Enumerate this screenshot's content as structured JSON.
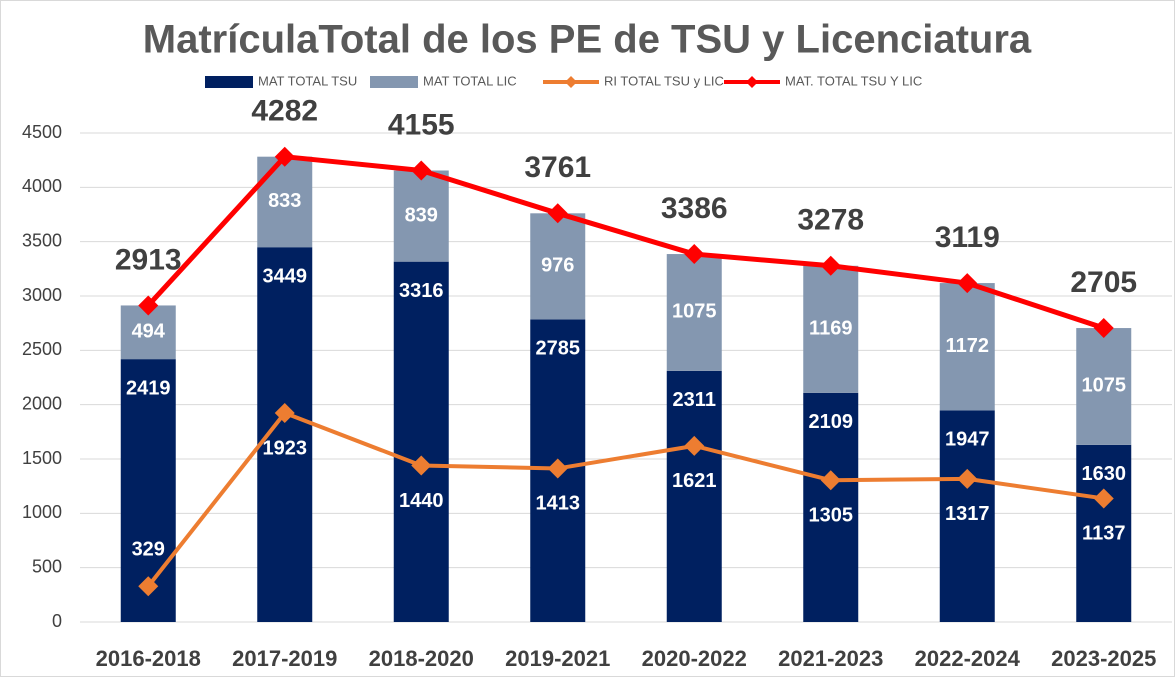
{
  "chart_data": {
    "type": "bar",
    "title": "MatrículaTotal de los PE de TSU y Licenciatura",
    "categories": [
      "2016-2018",
      "2017-2019",
      "2018-2020",
      "2019-2021",
      "2020-2022",
      "2021-2023",
      "2022-2024",
      "2023-2025"
    ],
    "series": [
      {
        "name": "MAT TOTAL TSU",
        "type": "bar",
        "color": "#002060",
        "values": [
          2419,
          3449,
          3316,
          2785,
          2311,
          2109,
          1947,
          1630
        ]
      },
      {
        "name": "MAT TOTAL LIC",
        "type": "bar",
        "color": "#8497b0",
        "values": [
          494,
          833,
          839,
          976,
          1075,
          1169,
          1172,
          1075
        ]
      },
      {
        "name": "RI TOTAL TSU y LIC",
        "type": "line",
        "color": "#ed7d31",
        "values": [
          329,
          1923,
          1440,
          1413,
          1621,
          1305,
          1317,
          1137
        ]
      },
      {
        "name": "MAT. TOTAL TSU Y LIC",
        "type": "line",
        "color": "#ff0000",
        "values": [
          2913,
          4282,
          4155,
          3761,
          3386,
          3278,
          3119,
          2705
        ]
      }
    ],
    "stacked": true,
    "ylim": [
      0,
      4500
    ],
    "yticks": [
      0,
      500,
      1000,
      1500,
      2000,
      2500,
      3000,
      3500,
      4000,
      4500
    ],
    "grid": true,
    "legend": "top"
  }
}
